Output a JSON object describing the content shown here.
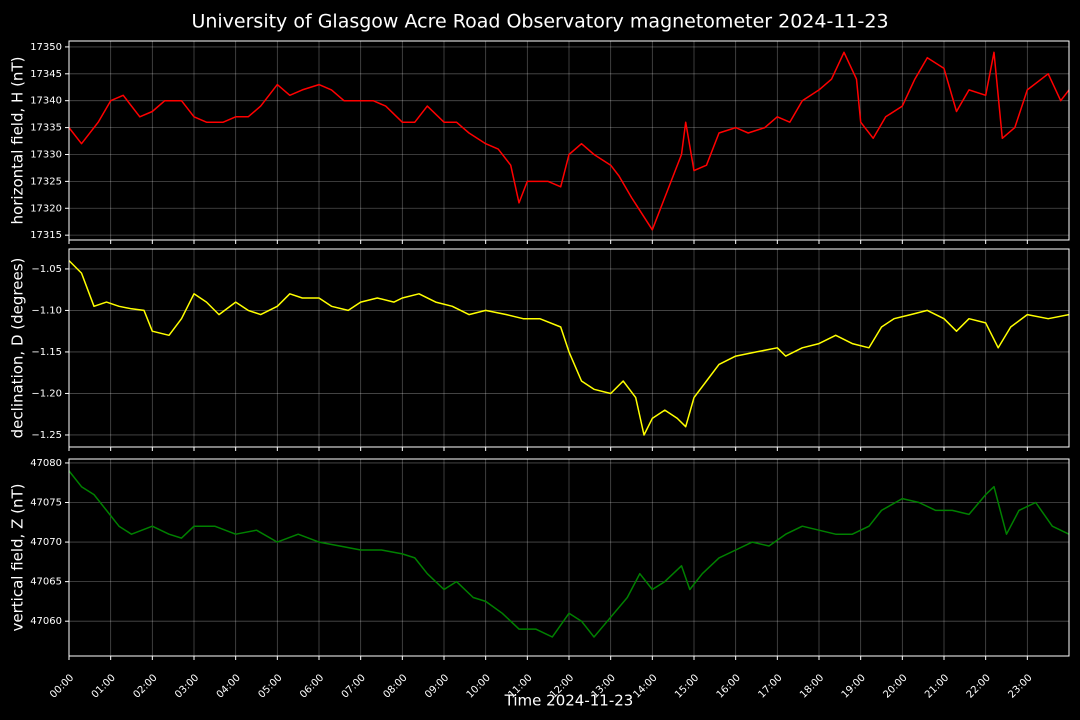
{
  "chart_data": [
    {
      "type": "line",
      "title": "University of Glasgow Acre Road Observatory magnetometer 2024-11-23",
      "ylabel": "horizontal field, H (nT)",
      "grid": true,
      "ylim": [
        17314.1,
        17351.1
      ],
      "yticks": [
        17315,
        17320,
        17325,
        17330,
        17335,
        17340,
        17345,
        17350
      ],
      "x": [
        0,
        0.3,
        0.7,
        1,
        1.3,
        1.7,
        2,
        2.3,
        2.7,
        3,
        3.3,
        3.7,
        4,
        4.3,
        4.6,
        5,
        5.3,
        5.6,
        6,
        6.3,
        6.6,
        7,
        7.3,
        7.6,
        8,
        8.3,
        8.6,
        9,
        9.3,
        9.6,
        10,
        10.3,
        10.6,
        10.8,
        11,
        11.5,
        11.8,
        12,
        12.3,
        12.6,
        13,
        13.2,
        13.5,
        14,
        14.3,
        14.7,
        14.8,
        15,
        15.3,
        15.6,
        16,
        16.3,
        16.7,
        17,
        17.3,
        17.6,
        18,
        18.3,
        18.6,
        18.9,
        19,
        19.3,
        19.6,
        20,
        20.3,
        20.6,
        21,
        21.3,
        21.6,
        22,
        22.2,
        22.4,
        22.7,
        23,
        23.5,
        23.8,
        24
      ],
      "series": [
        {
          "name": "H",
          "color": "#ff0000",
          "values": [
            17335,
            17332,
            17336,
            17340,
            17341,
            17337,
            17338,
            17340,
            17340,
            17337,
            17336,
            17336,
            17337,
            17337,
            17339,
            17343,
            17341,
            17342,
            17343,
            17342,
            17340,
            17340,
            17340,
            17339,
            17336,
            17336,
            17339,
            17336,
            17336,
            17334,
            17332,
            17331,
            17328,
            17321,
            17325,
            17325,
            17324,
            17330,
            17332,
            17330,
            17328,
            17326,
            17322,
            17316,
            17322,
            17330,
            17336,
            17327,
            17328,
            17334,
            17335,
            17334,
            17335,
            17337,
            17336,
            17340,
            17342,
            17344,
            17349,
            17344,
            17336,
            17333,
            17337,
            17339,
            17344,
            17348,
            17346,
            17338,
            17342,
            17341,
            17349,
            17333,
            17335,
            17342,
            17345,
            17340,
            17342
          ]
        }
      ]
    },
    {
      "type": "line",
      "ylabel": "declination, D (degrees)",
      "grid": true,
      "ylim": [
        -1.2645,
        -1.026
      ],
      "yticks": [
        {
          "value": -1.25,
          "label": "−1.25"
        },
        {
          "value": -1.2,
          "label": "−1.20"
        },
        {
          "value": -1.15,
          "label": "−1.15"
        },
        {
          "value": -1.1,
          "label": "−1.10"
        },
        {
          "value": -1.05,
          "label": "−1.05"
        }
      ],
      "x": [
        0,
        0.3,
        0.6,
        0.9,
        1.2,
        1.5,
        1.8,
        2,
        2.4,
        2.7,
        3,
        3.3,
        3.6,
        4,
        4.3,
        4.6,
        5,
        5.3,
        5.6,
        6,
        6.3,
        6.7,
        7,
        7.4,
        7.8,
        8,
        8.4,
        8.8,
        9.2,
        9.6,
        10,
        10.5,
        10.9,
        11.3,
        11.8,
        12,
        12.3,
        12.6,
        13,
        13.3,
        13.6,
        13.8,
        14,
        14.3,
        14.6,
        14.8,
        15,
        15.3,
        15.6,
        16,
        16.5,
        17,
        17.2,
        17.6,
        18,
        18.4,
        18.8,
        19.2,
        19.5,
        19.8,
        20.2,
        20.6,
        21,
        21.3,
        21.6,
        22,
        22.3,
        22.6,
        23,
        23.5,
        24
      ],
      "series": [
        {
          "name": "D",
          "color": "#ffff00",
          "values": [
            -1.04,
            -1.055,
            -1.095,
            -1.09,
            -1.095,
            -1.098,
            -1.1,
            -1.125,
            -1.13,
            -1.11,
            -1.08,
            -1.09,
            -1.105,
            -1.09,
            -1.1,
            -1.105,
            -1.095,
            -1.08,
            -1.085,
            -1.085,
            -1.095,
            -1.1,
            -1.09,
            -1.085,
            -1.09,
            -1.085,
            -1.08,
            -1.09,
            -1.095,
            -1.105,
            -1.1,
            -1.105,
            -1.11,
            -1.11,
            -1.12,
            -1.15,
            -1.185,
            -1.195,
            -1.2,
            -1.185,
            -1.205,
            -1.25,
            -1.23,
            -1.22,
            -1.23,
            -1.24,
            -1.205,
            -1.185,
            -1.165,
            -1.155,
            -1.15,
            -1.145,
            -1.155,
            -1.145,
            -1.14,
            -1.13,
            -1.14,
            -1.145,
            -1.12,
            -1.11,
            -1.105,
            -1.1,
            -1.11,
            -1.125,
            -1.11,
            -1.115,
            -1.145,
            -1.12,
            -1.105,
            -1.11,
            -1.105
          ]
        }
      ]
    },
    {
      "type": "line",
      "ylabel": "vertical field, Z (nT)",
      "xlabel": "Time 2024-11-23",
      "grid": true,
      "ylim": [
        47055.6,
        47080.5
      ],
      "yticks": [
        47060,
        47065,
        47070,
        47075,
        47080
      ],
      "xlim": [
        0,
        24
      ],
      "xticks": [
        {
          "value": 0,
          "label": "00:00"
        },
        {
          "value": 1,
          "label": "01:00"
        },
        {
          "value": 2,
          "label": "02:00"
        },
        {
          "value": 3,
          "label": "03:00"
        },
        {
          "value": 4,
          "label": "04:00"
        },
        {
          "value": 5,
          "label": "05:00"
        },
        {
          "value": 6,
          "label": "06:00"
        },
        {
          "value": 7,
          "label": "07:00"
        },
        {
          "value": 8,
          "label": "08:00"
        },
        {
          "value": 9,
          "label": "09:00"
        },
        {
          "value": 10,
          "label": "10:00"
        },
        {
          "value": 11,
          "label": "11:00"
        },
        {
          "value": 12,
          "label": "12:00"
        },
        {
          "value": 13,
          "label": "13:00"
        },
        {
          "value": 14,
          "label": "14:00"
        },
        {
          "value": 15,
          "label": "15:00"
        },
        {
          "value": 16,
          "label": "16:00"
        },
        {
          "value": 17,
          "label": "17:00"
        },
        {
          "value": 18,
          "label": "18:00"
        },
        {
          "value": 19,
          "label": "19:00"
        },
        {
          "value": 20,
          "label": "20:00"
        },
        {
          "value": 21,
          "label": "21:00"
        },
        {
          "value": 22,
          "label": "22:00"
        },
        {
          "value": 23,
          "label": "23:00"
        }
      ],
      "x": [
        0,
        0.3,
        0.6,
        0.9,
        1.2,
        1.5,
        2,
        2.4,
        2.7,
        3,
        3.5,
        4,
        4.5,
        5,
        5.5,
        6,
        6.5,
        7,
        7.5,
        8,
        8.3,
        8.6,
        9,
        9.3,
        9.7,
        10,
        10.4,
        10.8,
        11.2,
        11.6,
        12,
        12.3,
        12.6,
        13,
        13.4,
        13.7,
        14,
        14.3,
        14.7,
        14.9,
        15.2,
        15.6,
        16,
        16.4,
        16.8,
        17.2,
        17.6,
        18,
        18.4,
        18.8,
        19.2,
        19.5,
        20,
        20.4,
        20.8,
        21.2,
        21.6,
        22,
        22.2,
        22.5,
        22.8,
        23.2,
        23.6,
        24
      ],
      "series": [
        {
          "name": "Z",
          "color": "#008000",
          "values": [
            47079,
            47077,
            47076,
            47074,
            47072,
            47071,
            47072,
            47071,
            47070.5,
            47072,
            47072,
            47071,
            47071.5,
            47070,
            47071,
            47070,
            47069.5,
            47069,
            47069,
            47068.5,
            47068,
            47066,
            47064,
            47065,
            47063,
            47062.5,
            47061,
            47059,
            47059,
            47058,
            47061,
            47060,
            47058,
            47060.5,
            47063,
            47066,
            47064,
            47065,
            47067,
            47064,
            47066,
            47068,
            47069,
            47070,
            47069.5,
            47071,
            47072,
            47071.5,
            47071,
            47071,
            47072,
            47074,
            47075.5,
            47075,
            47074,
            47074,
            47073.5,
            47076,
            47077,
            47071,
            47074,
            47075,
            47072,
            47071
          ]
        }
      ]
    }
  ]
}
